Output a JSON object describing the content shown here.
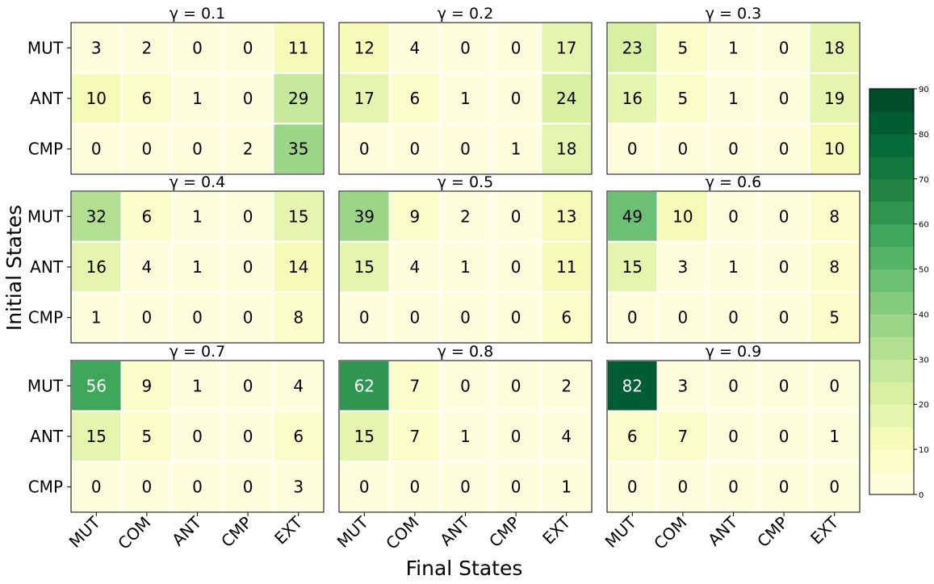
{
  "chart_data": {
    "type": "heatmap",
    "xlabel": "Final States",
    "ylabel": "Initial States",
    "x_categories": [
      "MUT",
      "COM",
      "ANT",
      "CMP",
      "EXT"
    ],
    "y_categories": [
      "MUT",
      "ANT",
      "CMP"
    ],
    "colormap": "Greens",
    "colormap_stops": [
      "#ffffe5",
      "#f7fcb9",
      "#d9f0a3",
      "#addd8e",
      "#78c679",
      "#41ab5d",
      "#238443",
      "#006837",
      "#004529"
    ],
    "vmin": 0,
    "vmax": 90,
    "colorbar_ticks": [
      "0",
      "10",
      "20",
      "30",
      "40",
      "50",
      "60",
      "70",
      "80",
      "90"
    ],
    "colorbar_levels": 18,
    "panels": [
      {
        "title": "γ = 0.1",
        "values": [
          [
            3,
            2,
            0,
            0,
            11
          ],
          [
            10,
            6,
            1,
            0,
            29
          ],
          [
            0,
            0,
            0,
            2,
            35
          ]
        ]
      },
      {
        "title": "γ = 0.2",
        "values": [
          [
            12,
            4,
            0,
            0,
            17
          ],
          [
            17,
            6,
            1,
            0,
            24
          ],
          [
            0,
            0,
            0,
            1,
            18
          ]
        ]
      },
      {
        "title": "γ = 0.3",
        "values": [
          [
            23,
            5,
            1,
            0,
            18
          ],
          [
            16,
            5,
            1,
            0,
            19
          ],
          [
            0,
            0,
            0,
            0,
            10
          ]
        ]
      },
      {
        "title": "γ = 0.4",
        "values": [
          [
            32,
            6,
            1,
            0,
            15
          ],
          [
            16,
            4,
            1,
            0,
            14
          ],
          [
            1,
            0,
            0,
            0,
            8
          ]
        ]
      },
      {
        "title": "γ = 0.5",
        "values": [
          [
            39,
            9,
            2,
            0,
            13
          ],
          [
            15,
            4,
            1,
            0,
            11
          ],
          [
            0,
            0,
            0,
            0,
            6
          ]
        ]
      },
      {
        "title": "γ = 0.6",
        "values": [
          [
            49,
            10,
            0,
            0,
            8
          ],
          [
            15,
            3,
            1,
            0,
            8
          ],
          [
            0,
            0,
            0,
            0,
            5
          ]
        ]
      },
      {
        "title": "γ = 0.7",
        "values": [
          [
            56,
            9,
            1,
            0,
            4
          ],
          [
            15,
            5,
            0,
            0,
            6
          ],
          [
            0,
            0,
            0,
            0,
            3
          ]
        ]
      },
      {
        "title": "γ = 0.8",
        "values": [
          [
            62,
            7,
            0,
            0,
            2
          ],
          [
            15,
            7,
            1,
            0,
            4
          ],
          [
            0,
            0,
            0,
            0,
            1
          ]
        ]
      },
      {
        "title": "γ = 0.9",
        "values": [
          [
            82,
            3,
            0,
            0,
            0
          ],
          [
            6,
            7,
            0,
            0,
            1
          ],
          [
            0,
            0,
            0,
            0,
            0
          ]
        ]
      }
    ]
  }
}
